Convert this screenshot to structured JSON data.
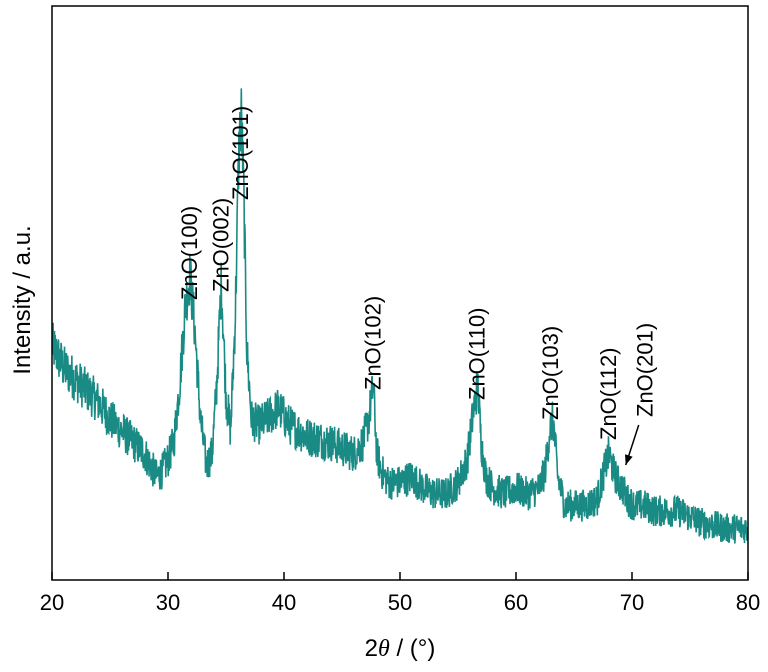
{
  "chart_data": {
    "type": "line",
    "title": "",
    "xlabel": "2θ / (°)",
    "xlabel_parts": {
      "prefix": "2",
      "symbol": "θ",
      "suffix": " / (°)"
    },
    "ylabel": "Intensity / a.u.",
    "xlim": [
      20,
      80
    ],
    "ylim": [
      0,
      100
    ],
    "x_ticks": [
      "20",
      "30",
      "40",
      "50",
      "60",
      "70",
      "80"
    ],
    "y_ticks": [],
    "grid": false,
    "legend": "none",
    "line_color": "#1a8a84",
    "series": [
      {
        "x": [
          20,
          21,
          22,
          23,
          24,
          25,
          26,
          27,
          28,
          29,
          29.5,
          30,
          30.5,
          31,
          31.5,
          31.9,
          32.3,
          32.8,
          33.3,
          33.8,
          34.2,
          34.6,
          35.0,
          35.4,
          35.8,
          36.1,
          36.3,
          36.5,
          36.8,
          37.2,
          37.8,
          38.5,
          39.5,
          40.5,
          42,
          44,
          46,
          46.8,
          47.3,
          47.7,
          48.0,
          48.4,
          49,
          50,
          51,
          52,
          53,
          54,
          55,
          55.8,
          56.3,
          56.7,
          57.0,
          57.4,
          58,
          59,
          60,
          61,
          62,
          62.5,
          62.9,
          63.2,
          63.6,
          64.2,
          65,
          66,
          67,
          67.6,
          68.0,
          68.4,
          68.8,
          69.2,
          69.6,
          70.2,
          71,
          72,
          74,
          76,
          78,
          80
        ],
        "y": [
          41,
          37,
          35,
          33,
          31,
          28,
          26,
          24,
          22,
          18,
          19,
          21,
          24,
          34,
          48,
          53,
          44,
          28,
          20,
          22,
          34,
          52,
          32,
          26,
          46,
          74,
          82,
          70,
          40,
          28,
          27,
          28,
          30,
          27,
          25,
          24,
          22,
          24,
          28,
          34,
          22,
          19,
          17,
          17,
          18,
          16,
          15,
          15,
          17,
          21,
          29,
          34,
          24,
          18,
          16,
          15,
          16,
          15,
          16,
          19,
          26,
          28,
          18,
          13,
          13,
          13,
          14,
          19,
          22,
          19,
          17,
          16,
          14,
          13,
          13,
          12,
          12,
          10,
          9,
          9
        ]
      }
    ],
    "annotations": [
      {
        "text": "ZnO(100)",
        "x": 31.9
      },
      {
        "text": "ZnO(002)",
        "x": 34.6
      },
      {
        "text": "ZnO(101)",
        "x": 36.3
      },
      {
        "text": "ZnO(102)",
        "x": 47.7
      },
      {
        "text": "ZnO(110)",
        "x": 56.7
      },
      {
        "text": "ZnO(103)",
        "x": 63.0
      },
      {
        "text": "ZnO(112)",
        "x": 68.0
      },
      {
        "text": "ZnO(201)",
        "x": 69.2,
        "arrow": true
      }
    ]
  }
}
